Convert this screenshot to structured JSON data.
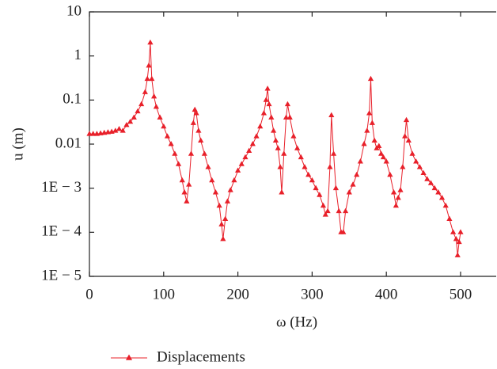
{
  "chart_data": {
    "type": "line",
    "x_label": "ω (Hz)",
    "y_label": "u (m)",
    "log_y": true,
    "xlim": [
      0,
      548
    ],
    "xticks": [
      0,
      100,
      200,
      300,
      400,
      500
    ],
    "ylim": [
      1e-05,
      10
    ],
    "yticks": [
      {
        "value": 10,
        "label": "10"
      },
      {
        "value": 1,
        "label": "1"
      },
      {
        "value": 0.1,
        "label": "0.1"
      },
      {
        "value": 0.01,
        "label": "0.01"
      },
      {
        "value": 0.001,
        "label": "1E − 3"
      },
      {
        "value": 0.0001,
        "label": "1E − 4"
      },
      {
        "value": 1e-05,
        "label": "1E − 5"
      }
    ],
    "legend": "bottom",
    "x": [
      0,
      5,
      10,
      15,
      20,
      25,
      30,
      35,
      40,
      45,
      50,
      55,
      60,
      65,
      70,
      75,
      78,
      80,
      82,
      84,
      87,
      90,
      95,
      100,
      105,
      110,
      115,
      120,
      125,
      128,
      131,
      134,
      137,
      140,
      142,
      144,
      147,
      150,
      155,
      160,
      165,
      170,
      175,
      178,
      180,
      183,
      186,
      190,
      195,
      200,
      205,
      210,
      215,
      220,
      225,
      230,
      235,
      238,
      240,
      242,
      245,
      248,
      251,
      254,
      257,
      259,
      262,
      265,
      267,
      270,
      275,
      280,
      285,
      290,
      295,
      300,
      305,
      310,
      315,
      318,
      321,
      324,
      326,
      329,
      332,
      336,
      339,
      342,
      345,
      350,
      355,
      360,
      365,
      370,
      374,
      377,
      379,
      381,
      384,
      387,
      390,
      393,
      396,
      400,
      405,
      410,
      413,
      416,
      419,
      422,
      425,
      427,
      430,
      435,
      440,
      445,
      450,
      455,
      460,
      465,
      470,
      475,
      480,
      485,
      490,
      494,
      496,
      498,
      500
    ],
    "series": [
      {
        "name": "Displacements",
        "color": "#e8202a",
        "values": [
          0.017,
          0.017,
          0.017,
          0.0175,
          0.018,
          0.0185,
          0.019,
          0.02,
          0.022,
          0.02,
          0.027,
          0.032,
          0.04,
          0.055,
          0.08,
          0.15,
          0.3,
          0.6,
          2.0,
          0.3,
          0.12,
          0.07,
          0.04,
          0.025,
          0.015,
          0.01,
          0.006,
          0.0035,
          0.0015,
          0.0008,
          0.0005,
          0.0012,
          0.006,
          0.03,
          0.06,
          0.05,
          0.02,
          0.012,
          0.006,
          0.003,
          0.0015,
          0.0008,
          0.0004,
          0.00015,
          7e-05,
          0.0002,
          0.0005,
          0.0009,
          0.0015,
          0.0025,
          0.0035,
          0.005,
          0.007,
          0.01,
          0.015,
          0.025,
          0.05,
          0.1,
          0.18,
          0.08,
          0.04,
          0.02,
          0.012,
          0.008,
          0.003,
          0.0008,
          0.006,
          0.04,
          0.08,
          0.04,
          0.015,
          0.008,
          0.005,
          0.003,
          0.002,
          0.0015,
          0.001,
          0.0007,
          0.0004,
          0.00025,
          0.0003,
          0.003,
          0.045,
          0.006,
          0.001,
          0.0003,
          0.0001,
          0.0001,
          0.0003,
          0.0008,
          0.0012,
          0.002,
          0.004,
          0.01,
          0.02,
          0.05,
          0.3,
          0.03,
          0.012,
          0.008,
          0.009,
          0.006,
          0.005,
          0.004,
          0.002,
          0.0008,
          0.0004,
          0.0006,
          0.0009,
          0.003,
          0.015,
          0.035,
          0.012,
          0.006,
          0.004,
          0.003,
          0.0022,
          0.0016,
          0.0013,
          0.001,
          0.0008,
          0.0006,
          0.0004,
          0.0002,
          0.0001,
          7e-05,
          3e-05,
          6e-05,
          0.0001
        ]
      }
    ]
  }
}
